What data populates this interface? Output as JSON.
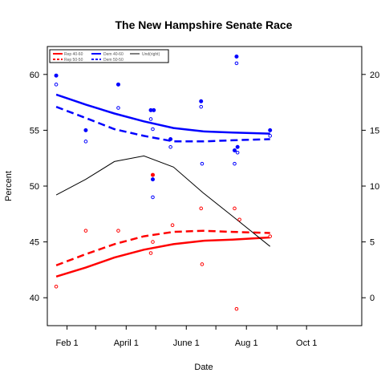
{
  "chart_data": {
    "type": "scatter",
    "title": "The New Hampshire Senate Race",
    "xlabel": "Date",
    "ylabel": "Percent",
    "x_ticks": [
      "Feb 1",
      "April 1",
      "June 1",
      "Aug 1",
      "Oct 1"
    ],
    "x_tick_dates": [
      "2008-02-01",
      "2008-04-01",
      "2008-06-01",
      "2008-08-01",
      "2008-10-01"
    ],
    "x_minor_tick_dates": [
      "2008-03-01",
      "2008-05-01",
      "2008-07-01",
      "2008-09-01"
    ],
    "xlim": [
      "2008-01-12",
      "2008-11-26"
    ],
    "ylim": [
      37.5,
      62.5
    ],
    "y_ticks": [
      40,
      45,
      50,
      55,
      60
    ],
    "y2lim": [
      -2.5,
      22.5
    ],
    "y2_ticks": [
      0,
      5,
      10,
      15,
      20
    ],
    "grid": false,
    "legend_position": "top-left",
    "series": [
      {
        "name": "Rep 40-60",
        "color": "#ff0000",
        "style": "solid",
        "axis": "left",
        "x": [
          "2008-01-21",
          "2008-02-20",
          "2008-03-20",
          "2008-04-19",
          "2008-05-19",
          "2008-06-18",
          "2008-07-18",
          "2008-08-25"
        ],
        "y": [
          41.9,
          42.7,
          43.6,
          44.3,
          44.8,
          45.1,
          45.2,
          45.4
        ]
      },
      {
        "name": "Rep 50-50",
        "color": "#ff0000",
        "style": "dashed",
        "axis": "left",
        "x": [
          "2008-01-21",
          "2008-02-20",
          "2008-03-20",
          "2008-04-19",
          "2008-05-19",
          "2008-06-18",
          "2008-07-18",
          "2008-08-25"
        ],
        "y": [
          42.9,
          43.9,
          44.8,
          45.5,
          45.9,
          46.0,
          45.9,
          45.8
        ]
      },
      {
        "name": "Dem 40-60",
        "color": "#0000ff",
        "style": "solid",
        "axis": "left",
        "x": [
          "2008-01-21",
          "2008-02-20",
          "2008-03-20",
          "2008-04-19",
          "2008-05-19",
          "2008-06-18",
          "2008-07-18",
          "2008-08-25"
        ],
        "y": [
          58.2,
          57.3,
          56.5,
          55.8,
          55.2,
          54.9,
          54.8,
          54.7
        ]
      },
      {
        "name": "Dem 50-50",
        "color": "#0000ff",
        "style": "dashed",
        "axis": "left",
        "x": [
          "2008-01-21",
          "2008-02-20",
          "2008-03-20",
          "2008-04-19",
          "2008-05-19",
          "2008-06-18",
          "2008-07-18",
          "2008-08-25"
        ],
        "y": [
          57.1,
          56.1,
          55.1,
          54.5,
          54.0,
          54.0,
          54.1,
          54.2
        ]
      },
      {
        "name": "Und(right)",
        "color": "#000000",
        "style": "solid",
        "axis": "right",
        "x": [
          "2008-01-21",
          "2008-02-20",
          "2008-03-20",
          "2008-04-19",
          "2008-05-19",
          "2008-06-18",
          "2008-07-18",
          "2008-08-25"
        ],
        "y": [
          9.2,
          10.6,
          12.2,
          12.7,
          11.7,
          9.4,
          7.3,
          4.6
        ]
      }
    ],
    "points": [
      {
        "group": "Dem 40-60",
        "color": "#0000ff",
        "filled": true,
        "x": [
          "2008-01-21",
          "2008-02-20",
          "2008-03-24",
          "2008-04-26",
          "2008-04-29",
          "2008-05-16",
          "2008-06-16",
          "2008-07-20",
          "2008-07-22",
          "2008-07-23",
          "2008-08-25",
          "2008-04-28"
        ],
        "y": [
          59.9,
          55.0,
          59.1,
          56.8,
          56.8,
          54.2,
          57.6,
          53.2,
          61.6,
          53.5,
          55.0,
          50.6
        ]
      },
      {
        "group": "Dem 50-50",
        "color": "#0000ff",
        "filled": false,
        "x": [
          "2008-01-21",
          "2008-02-20",
          "2008-03-24",
          "2008-04-26",
          "2008-04-28",
          "2008-05-16",
          "2008-06-16",
          "2008-06-17",
          "2008-07-20",
          "2008-07-22",
          "2008-07-23",
          "2008-08-25",
          "2008-04-28"
        ],
        "y": [
          59.1,
          54.0,
          57.0,
          56.0,
          55.1,
          53.5,
          57.1,
          52.0,
          52.0,
          61.0,
          53.0,
          54.5,
          49.0
        ]
      },
      {
        "group": "Rep 40-60",
        "color": "#ff0000",
        "filled": true,
        "x": [
          "2008-04-28"
        ],
        "y": [
          51.0
        ]
      },
      {
        "group": "Rep 50-50",
        "color": "#ff0000",
        "filled": false,
        "x": [
          "2008-01-21",
          "2008-02-20",
          "2008-03-24",
          "2008-04-26",
          "2008-04-28",
          "2008-05-18",
          "2008-06-16",
          "2008-06-17",
          "2008-07-20",
          "2008-07-22",
          "2008-07-25",
          "2008-08-25"
        ],
        "y": [
          41.0,
          46.0,
          46.0,
          44.0,
          45.0,
          46.5,
          48.0,
          43.0,
          48.0,
          39.0,
          47.0,
          45.5
        ]
      }
    ]
  }
}
